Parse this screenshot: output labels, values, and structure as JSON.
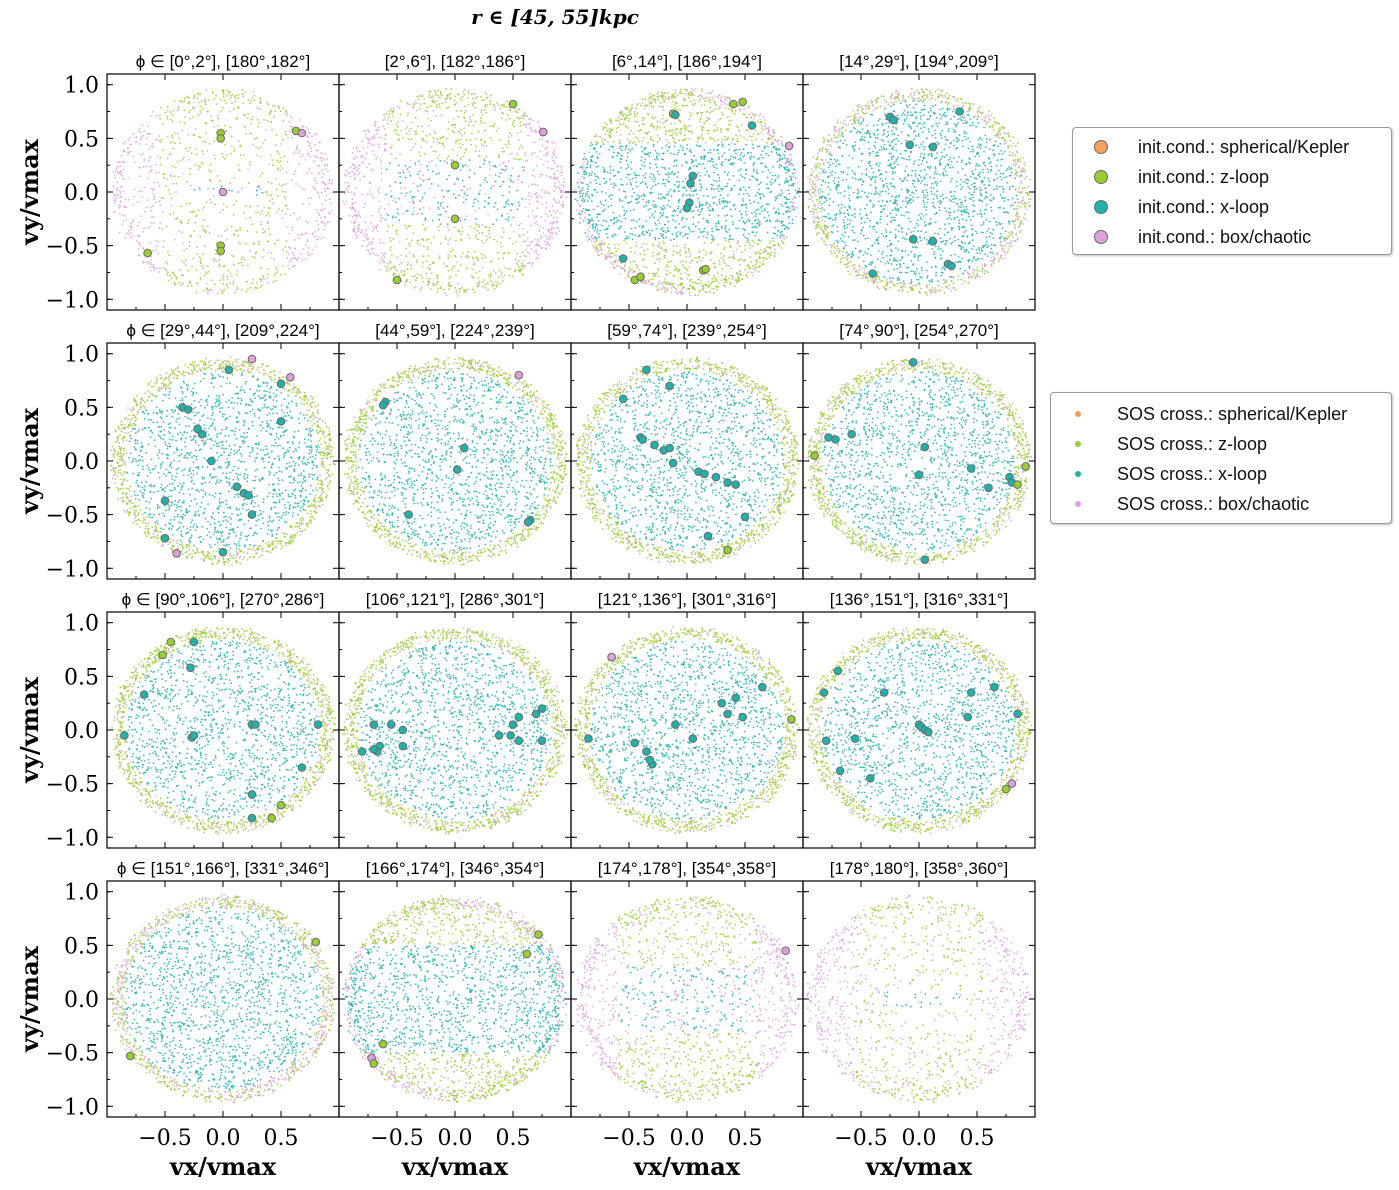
{
  "chart_data": {
    "type": "scatter",
    "title": "r ∈ [45, 55]kpc",
    "xlabel": "v_x/v_max",
    "ylabel": "v_y/v_max",
    "xlim": [
      -1.0,
      1.0
    ],
    "ylim": [
      -1.1,
      1.1
    ],
    "xticks": [
      "−0.5",
      "0.0",
      "0.5"
    ],
    "yticks": [
      "1.0",
      "0.5",
      "0.0",
      "−0.5",
      "−1.0"
    ],
    "ytick_values": [
      1.0,
      0.5,
      0.0,
      -0.5,
      -1.0
    ],
    "xtick_values": [
      -0.5,
      0.0,
      0.5
    ],
    "colors": {
      "spherical_kepler": "#f4a261",
      "z_loop": "#9acd32",
      "x_loop": "#20b2aa",
      "box_chaotic": "#dda0dd"
    },
    "legend_init": {
      "items": [
        {
          "label": "init.cond.: spherical/Kepler",
          "color": "#f4a261"
        },
        {
          "label": "init.cond.: z-loop",
          "color": "#9acd32"
        },
        {
          "label": "init.cond.: x-loop",
          "color": "#20b2aa"
        },
        {
          "label": "init.cond.: box/chaotic",
          "color": "#dda0dd"
        }
      ]
    },
    "legend_sos": {
      "items": [
        {
          "label": "SOS cross.: spherical/Kepler",
          "color": "#f4a261"
        },
        {
          "label": "SOS cross.: z-loop",
          "color": "#9acd32"
        },
        {
          "label": "SOS cross.: x-loop",
          "color": "#20b2aa"
        },
        {
          "label": "SOS cross.: box/chaotic",
          "color": "#dda0dd"
        }
      ]
    },
    "panels": [
      {
        "phi_label": "ϕ ∈ [0°,2°], [180°,182°]",
        "mix": "edge",
        "init": [
          [
            -0.02,
            0.55,
            "z"
          ],
          [
            -0.02,
            0.5,
            "z"
          ],
          [
            -0.02,
            -0.5,
            "z"
          ],
          [
            -0.02,
            -0.55,
            "z"
          ],
          [
            0.0,
            0.0,
            "b"
          ],
          [
            0.63,
            0.57,
            "z"
          ],
          [
            0.68,
            0.55,
            "b"
          ],
          [
            -0.65,
            -0.57,
            "z"
          ]
        ]
      },
      {
        "phi_label": "[2°,6°], [182°,186°]",
        "mix": "edge2",
        "init": [
          [
            0.5,
            0.82,
            "z"
          ],
          [
            0.76,
            0.56,
            "b"
          ],
          [
            0.0,
            0.25,
            "z"
          ],
          [
            0.0,
            -0.25,
            "z"
          ],
          [
            -0.5,
            -0.82,
            "z"
          ]
        ]
      },
      {
        "phi_label": "[6°,14°], [186°,194°]",
        "mix": "band",
        "init": [
          [
            -0.12,
            0.73,
            "z"
          ],
          [
            -0.1,
            0.72,
            "x"
          ],
          [
            0.4,
            0.82,
            "z"
          ],
          [
            0.48,
            0.84,
            "z"
          ],
          [
            0.56,
            0.62,
            "x"
          ],
          [
            0.88,
            0.43,
            "b"
          ],
          [
            0.05,
            0.15,
            "x"
          ],
          [
            0.03,
            0.08,
            "x"
          ],
          [
            0.02,
            -0.1,
            "x"
          ],
          [
            0.0,
            -0.15,
            "x"
          ],
          [
            -0.55,
            -0.62,
            "x"
          ],
          [
            -0.45,
            -0.82,
            "z"
          ],
          [
            -0.4,
            -0.79,
            "z"
          ],
          [
            0.14,
            -0.73,
            "z"
          ],
          [
            0.16,
            -0.72,
            "z"
          ]
        ]
      },
      {
        "phi_label": "[14°,29°], [194°,209°]",
        "mix": "xfull",
        "init": [
          [
            -0.25,
            0.7,
            "x"
          ],
          [
            -0.22,
            0.67,
            "x"
          ],
          [
            0.35,
            0.75,
            "x"
          ],
          [
            -0.08,
            0.44,
            "x"
          ],
          [
            0.12,
            0.42,
            "x"
          ],
          [
            -0.05,
            -0.44,
            "x"
          ],
          [
            0.12,
            -0.46,
            "x"
          ],
          [
            0.25,
            -0.67,
            "x"
          ],
          [
            0.28,
            -0.69,
            "x"
          ],
          [
            -0.4,
            -0.76,
            "x"
          ]
        ]
      },
      {
        "phi_label": "ϕ ∈ [29°,44°], [209°,224°]",
        "mix": "xring",
        "init": [
          [
            0.25,
            0.95,
            "b"
          ],
          [
            0.58,
            0.78,
            "b"
          ],
          [
            0.05,
            0.85,
            "x"
          ],
          [
            0.5,
            0.72,
            "x"
          ],
          [
            -0.35,
            0.5,
            "x"
          ],
          [
            -0.3,
            0.48,
            "x"
          ],
          [
            -0.22,
            0.3,
            "x"
          ],
          [
            -0.18,
            0.25,
            "x"
          ],
          [
            -0.1,
            0.0,
            "x"
          ],
          [
            0.12,
            -0.24,
            "x"
          ],
          [
            0.18,
            -0.3,
            "x"
          ],
          [
            0.22,
            -0.32,
            "x"
          ],
          [
            0.25,
            -0.5,
            "x"
          ],
          [
            -0.5,
            -0.37,
            "x"
          ],
          [
            -0.5,
            -0.72,
            "x"
          ],
          [
            -0.4,
            -0.86,
            "b"
          ],
          [
            0.0,
            -0.85,
            "x"
          ],
          [
            0.5,
            0.37,
            "x"
          ]
        ]
      },
      {
        "phi_label": "[44°,59°], [224°,239°]",
        "mix": "xring",
        "init": [
          [
            -0.6,
            0.55,
            "x"
          ],
          [
            -0.62,
            0.52,
            "x"
          ],
          [
            0.55,
            0.8,
            "b"
          ],
          [
            0.08,
            0.12,
            "x"
          ],
          [
            0.02,
            -0.08,
            "x"
          ],
          [
            -0.4,
            -0.5,
            "x"
          ],
          [
            0.65,
            -0.55,
            "x"
          ],
          [
            0.63,
            -0.57,
            "x"
          ]
        ]
      },
      {
        "phi_label": "[59°,74°], [239°,254°]",
        "mix": "xring",
        "init": [
          [
            -0.35,
            0.85,
            "x"
          ],
          [
            -0.55,
            0.58,
            "x"
          ],
          [
            -0.15,
            0.7,
            "x"
          ],
          [
            -0.4,
            0.22,
            "x"
          ],
          [
            -0.38,
            0.2,
            "x"
          ],
          [
            -0.28,
            0.15,
            "x"
          ],
          [
            -0.2,
            0.1,
            "x"
          ],
          [
            -0.15,
            0.12,
            "x"
          ],
          [
            0.1,
            -0.1,
            "x"
          ],
          [
            0.15,
            -0.12,
            "x"
          ],
          [
            0.25,
            -0.15,
            "x"
          ],
          [
            0.35,
            -0.2,
            "x"
          ],
          [
            0.42,
            -0.22,
            "x"
          ],
          [
            0.5,
            -0.52,
            "x"
          ],
          [
            0.35,
            -0.83,
            "z"
          ],
          [
            0.18,
            -0.7,
            "x"
          ],
          [
            -0.12,
            -0.02,
            "x"
          ]
        ]
      },
      {
        "phi_label": "[74°,90°], [254°,270°]",
        "mix": "xring",
        "init": [
          [
            -0.9,
            0.05,
            "z"
          ],
          [
            -0.78,
            0.22,
            "x"
          ],
          [
            -0.72,
            0.2,
            "x"
          ],
          [
            -0.58,
            0.25,
            "x"
          ],
          [
            -0.05,
            0.92,
            "x"
          ],
          [
            0.05,
            0.13,
            "x"
          ],
          [
            0.0,
            -0.13,
            "x"
          ],
          [
            0.45,
            -0.07,
            "x"
          ],
          [
            0.6,
            -0.25,
            "x"
          ],
          [
            0.78,
            -0.15,
            "x"
          ],
          [
            0.8,
            -0.2,
            "x"
          ],
          [
            0.85,
            -0.22,
            "z"
          ],
          [
            0.92,
            -0.05,
            "z"
          ],
          [
            0.05,
            -0.92,
            "x"
          ]
        ]
      },
      {
        "phi_label": "ϕ ∈ [90°,106°], [270°,286°]",
        "mix": "xring",
        "init": [
          [
            -0.45,
            0.82,
            "z"
          ],
          [
            -0.52,
            0.7,
            "z"
          ],
          [
            -0.25,
            0.82,
            "x"
          ],
          [
            -0.28,
            0.58,
            "x"
          ],
          [
            -0.68,
            0.33,
            "x"
          ],
          [
            -0.85,
            -0.05,
            "x"
          ],
          [
            -0.27,
            -0.07,
            "x"
          ],
          [
            -0.25,
            -0.05,
            "x"
          ],
          [
            0.25,
            0.05,
            "x"
          ],
          [
            0.28,
            0.05,
            "x"
          ],
          [
            0.82,
            0.05,
            "x"
          ],
          [
            0.68,
            -0.35,
            "x"
          ],
          [
            0.25,
            -0.6,
            "x"
          ],
          [
            0.5,
            -0.7,
            "z"
          ],
          [
            0.42,
            -0.82,
            "z"
          ],
          [
            0.25,
            -0.82,
            "x"
          ]
        ]
      },
      {
        "phi_label": "[106°,121°], [286°,301°]",
        "mix": "xring",
        "init": [
          [
            -0.7,
            0.05,
            "x"
          ],
          [
            -0.55,
            0.05,
            "x"
          ],
          [
            -0.45,
            0.0,
            "x"
          ],
          [
            -0.65,
            -0.15,
            "x"
          ],
          [
            -0.67,
            -0.2,
            "x"
          ],
          [
            -0.7,
            -0.18,
            "x"
          ],
          [
            -0.8,
            -0.2,
            "x"
          ],
          [
            -0.45,
            -0.15,
            "x"
          ],
          [
            0.5,
            0.05,
            "x"
          ],
          [
            0.55,
            0.12,
            "x"
          ],
          [
            0.7,
            0.15,
            "x"
          ],
          [
            0.75,
            0.2,
            "x"
          ],
          [
            0.48,
            -0.05,
            "x"
          ],
          [
            0.38,
            -0.05,
            "x"
          ],
          [
            0.55,
            -0.1,
            "x"
          ],
          [
            0.75,
            -0.1,
            "x"
          ]
        ]
      },
      {
        "phi_label": "[121°,136°], [301°,316°]",
        "mix": "xring",
        "init": [
          [
            -0.65,
            0.68,
            "b"
          ],
          [
            -0.85,
            -0.08,
            "x"
          ],
          [
            -0.45,
            -0.12,
            "x"
          ],
          [
            -0.35,
            -0.2,
            "x"
          ],
          [
            -0.3,
            -0.32,
            "x"
          ],
          [
            -0.32,
            -0.28,
            "x"
          ],
          [
            -0.1,
            0.05,
            "x"
          ],
          [
            0.05,
            -0.08,
            "x"
          ],
          [
            0.3,
            0.25,
            "x"
          ],
          [
            0.42,
            0.3,
            "x"
          ],
          [
            0.35,
            0.15,
            "x"
          ],
          [
            0.48,
            0.12,
            "x"
          ],
          [
            0.65,
            0.4,
            "x"
          ],
          [
            0.9,
            0.1,
            "z"
          ]
        ]
      },
      {
        "phi_label": "[136°,151°], [316°,331°]",
        "mix": "xring",
        "init": [
          [
            -0.7,
            0.55,
            "x"
          ],
          [
            -0.82,
            0.35,
            "x"
          ],
          [
            -0.8,
            -0.1,
            "x"
          ],
          [
            -0.68,
            -0.38,
            "x"
          ],
          [
            -0.55,
            -0.08,
            "x"
          ],
          [
            -0.3,
            0.35,
            "x"
          ],
          [
            -0.42,
            -0.45,
            "x"
          ],
          [
            0.0,
            0.05,
            "x"
          ],
          [
            0.02,
            0.03,
            "x"
          ],
          [
            0.05,
            0.0,
            "x"
          ],
          [
            0.08,
            -0.02,
            "x"
          ],
          [
            0.45,
            0.35,
            "x"
          ],
          [
            0.65,
            0.4,
            "x"
          ],
          [
            0.85,
            0.15,
            "x"
          ],
          [
            0.42,
            0.12,
            "x"
          ],
          [
            0.75,
            -0.55,
            "z"
          ],
          [
            0.8,
            -0.5,
            "b"
          ]
        ]
      },
      {
        "phi_label": "ϕ ∈ [151°,166°], [331°,346°]",
        "mix": "xfull2",
        "init": [
          [
            0.8,
            0.53,
            "z"
          ],
          [
            -0.8,
            -0.53,
            "z"
          ]
        ]
      },
      {
        "phi_label": "[166°,174°], [346°,354°]",
        "mix": "band2",
        "init": [
          [
            0.72,
            0.6,
            "z"
          ],
          [
            0.62,
            0.42,
            "z"
          ],
          [
            -0.62,
            -0.42,
            "z"
          ],
          [
            -0.72,
            -0.55,
            "b"
          ],
          [
            -0.7,
            -0.6,
            "z"
          ]
        ]
      },
      {
        "phi_label": "[174°,178°], [354°,358°]",
        "mix": "edge2",
        "init": [
          [
            0.85,
            0.45,
            "b"
          ]
        ]
      },
      {
        "phi_label": "[178°,180°], [358°,360°]",
        "mix": "edge",
        "init": []
      }
    ]
  }
}
